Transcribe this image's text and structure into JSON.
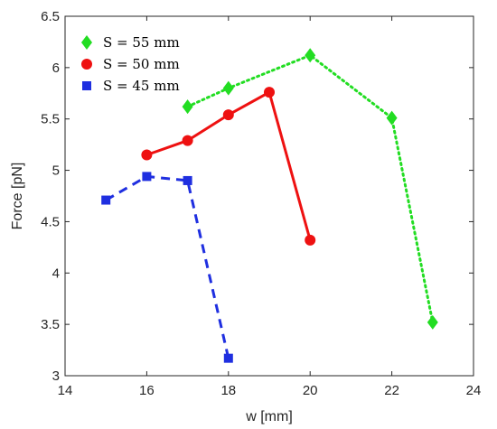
{
  "chart_data": {
    "type": "line",
    "xlabel": "w [mm]",
    "ylabel": "Force [pN]",
    "xlim": [
      14,
      24
    ],
    "ylim": [
      3,
      6.5
    ],
    "xticks": [
      14,
      16,
      18,
      20,
      22,
      24
    ],
    "yticks": [
      3,
      3.5,
      4,
      4.5,
      5,
      5.5,
      6,
      6.5
    ],
    "grid": false,
    "legend_position": "top-left",
    "series": [
      {
        "name": "S = 55 mm",
        "color": "#22dd22",
        "line_style": "dotted",
        "marker": "diamond",
        "x": [
          17,
          18,
          20,
          22,
          23
        ],
        "y": [
          5.62,
          5.8,
          6.12,
          5.51,
          3.52
        ]
      },
      {
        "name": "S = 50 mm",
        "color": "#ee1111",
        "line_style": "solid",
        "marker": "circle",
        "x": [
          16,
          17,
          18,
          19,
          20
        ],
        "y": [
          5.15,
          5.29,
          5.54,
          5.76,
          4.32
        ]
      },
      {
        "name": "S = 45 mm",
        "color": "#1f2fe0",
        "line_style": "dashed",
        "marker": "square",
        "x": [
          15,
          16,
          17,
          18
        ],
        "y": [
          4.71,
          4.94,
          4.9,
          3.17
        ]
      }
    ]
  }
}
